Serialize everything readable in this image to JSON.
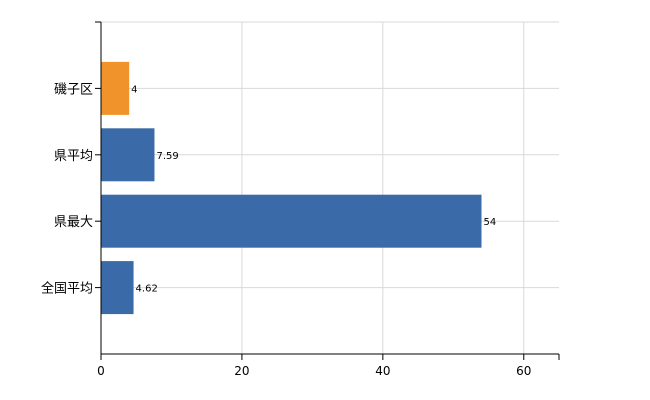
{
  "chart_data": {
    "type": "bar",
    "orientation": "horizontal",
    "categories": [
      "磯子区",
      "県平均",
      "県最大",
      "全国平均"
    ],
    "values": [
      4,
      7.59,
      54,
      4.62
    ],
    "data_labels": [
      "4",
      "7.59",
      "54",
      "4.62"
    ],
    "bar_colors": [
      "#f0932b",
      "#3b6aa8",
      "#3b6aa8",
      "#3b6aa8"
    ],
    "xlim": [
      0,
      65
    ],
    "xticks": [
      0,
      20,
      40,
      60
    ],
    "xtick_labels": [
      "0",
      "20",
      "40",
      "60"
    ],
    "grid": true,
    "title": "",
    "xlabel": "",
    "ylabel": ""
  }
}
